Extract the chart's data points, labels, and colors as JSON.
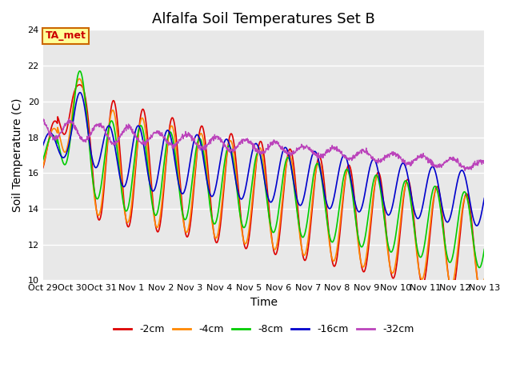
{
  "title": "Alfalfa Soil Temperatures Set B",
  "xlabel": "Time",
  "ylabel": "Soil Temperature (C)",
  "ylim": [
    10,
    24
  ],
  "yticks": [
    10,
    12,
    14,
    16,
    18,
    20,
    22,
    24
  ],
  "x_labels": [
    "Oct 29",
    "Oct 30",
    "Oct 31",
    "Nov 1",
    "Nov 2",
    "Nov 3",
    "Nov 4",
    "Nov 5",
    "Nov 6",
    "Nov 7",
    "Nov 8",
    "Nov 9",
    "Nov 10",
    "Nov 11",
    "Nov 12",
    "Nov 13"
  ],
  "annotation_text": "TA_met",
  "annotation_color": "#cc0000",
  "annotation_bg": "#ffff99",
  "annotation_border": "#cc6600",
  "series_colors": {
    "-2cm": "#dd0000",
    "-4cm": "#ff8800",
    "-8cm": "#00cc00",
    "-16cm": "#0000cc",
    "-32cm": "#bb44bb"
  },
  "legend_labels": [
    "-2cm",
    "-4cm",
    "-8cm",
    "-16cm",
    "-32cm"
  ],
  "plot_bg": "#e8e8e8",
  "title_fontsize": 13,
  "axis_fontsize": 10,
  "tick_fontsize": 8
}
